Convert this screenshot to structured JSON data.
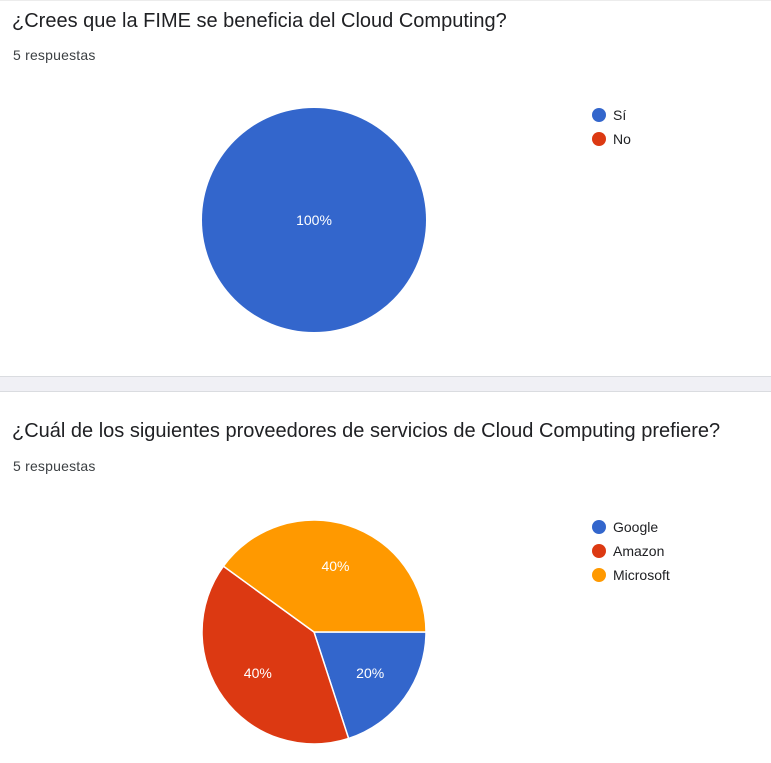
{
  "questions": [
    {
      "title": "¿Crees que la FIME se beneficia del Cloud Computing?",
      "responses": "5 respuestas"
    },
    {
      "title": "¿Cuál de los siguientes proveedores de servicios de Cloud Computing prefiere?",
      "responses": "5 respuestas"
    }
  ],
  "chart_data": [
    {
      "type": "pie",
      "title": "¿Crees que la FIME se beneficia del Cloud Computing?",
      "categories": [
        "Sí",
        "No"
      ],
      "values": [
        100,
        0
      ],
      "labels": [
        "100%",
        ""
      ],
      "colors": [
        "#3366cc",
        "#dc3912"
      ],
      "legend_position": "right"
    },
    {
      "type": "pie",
      "title": "¿Cuál de los siguientes proveedores de servicios de Cloud Computing prefiere?",
      "categories": [
        "Google",
        "Amazon",
        "Microsoft"
      ],
      "values": [
        20,
        40,
        40
      ],
      "labels": [
        "20%",
        "40%",
        "40%"
      ],
      "colors": [
        "#3366cc",
        "#dc3912",
        "#ff9900"
      ],
      "legend_position": "right"
    }
  ]
}
